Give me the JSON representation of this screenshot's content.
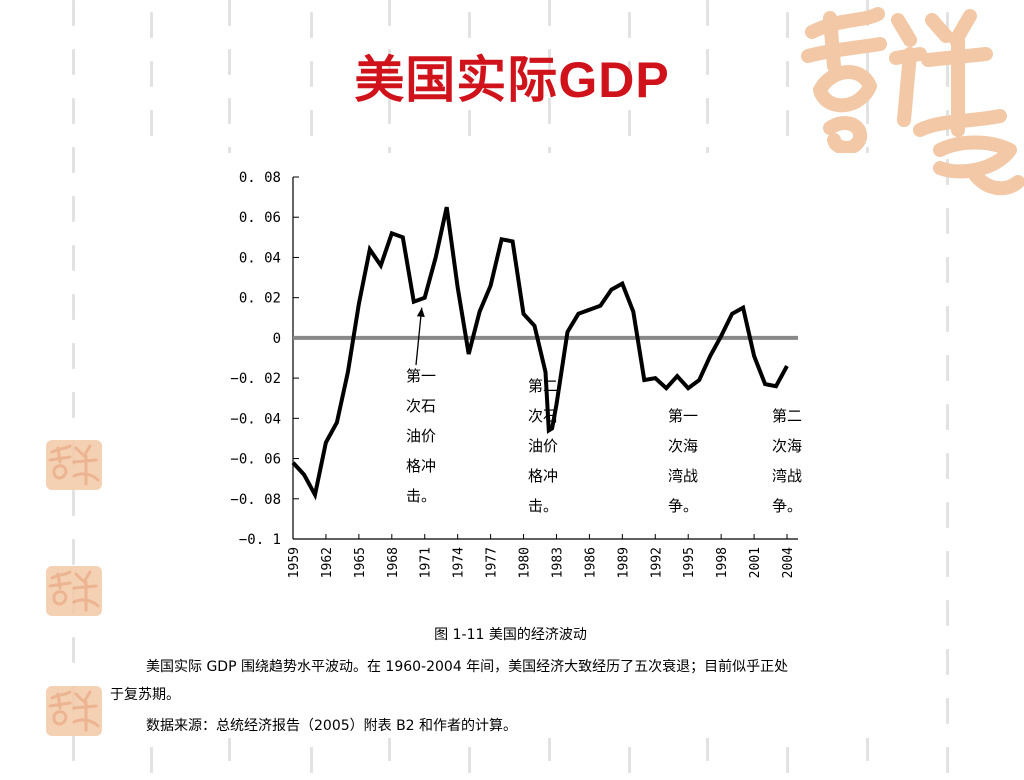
{
  "slide": {
    "title_cn": "美国实际",
    "title_latin": "GDP",
    "title_color": "#d0121b"
  },
  "figure": {
    "caption": "图 1-11  美国的经济波动",
    "note_line1": "美国实际 GDP 围绕趋势水平波动。在 1960-2004 年间，美国经济大致经历了五次衰退；目前似乎正处",
    "note_line2": "于复苏期。",
    "source_line": "数据来源：总统经济报告（2005）附表 B2 和作者的计算。"
  },
  "chart_data": {
    "type": "line",
    "title": "",
    "xlabel": "",
    "ylabel": "",
    "ylim": [
      -0.1,
      0.08
    ],
    "xlim": [
      1959,
      2005
    ],
    "yticks": [
      0.08,
      0.06,
      0.04,
      0.02,
      0,
      -0.02,
      -0.04,
      -0.06,
      -0.08,
      -0.1
    ],
    "ytick_labels": [
      "0. 08",
      "0. 06",
      "0. 04",
      "0. 02",
      "0",
      "−0. 02",
      "−0. 04",
      "−0. 06",
      "−0. 08",
      "−0. 1"
    ],
    "xticks": [
      1959,
      1962,
      1965,
      1968,
      1971,
      1974,
      1977,
      1980,
      1983,
      1986,
      1989,
      1992,
      1995,
      1998,
      2001,
      2004
    ],
    "x_tick_labels": [
      "1959",
      "1962",
      "1965",
      "1968",
      "1971",
      "1974",
      "1977",
      "1980",
      "1983",
      "1986",
      "1989",
      "1992",
      "1995",
      "1998",
      "2001",
      "2004"
    ],
    "zero_line": true,
    "zero_line_color": "#888888",
    "series": [
      {
        "line_color": "#000000",
        "x": [
          1959,
          1960,
          1961,
          1962,
          1963,
          1964,
          1965,
          1966,
          1967,
          1968,
          1969,
          1970,
          1971,
          1972,
          1973,
          1974,
          1975,
          1976,
          1977,
          1978,
          1979,
          1980,
          1981,
          1982,
          1982.3,
          1982.6,
          1983,
          1984,
          1985,
          1986,
          1987,
          1988,
          1989,
          1990,
          1991,
          1992,
          1993,
          1994,
          1995,
          1996,
          1997,
          1998,
          1999,
          2000,
          2001,
          2002,
          2003,
          2004
        ],
        "y": [
          -0.062,
          -0.068,
          -0.078,
          -0.052,
          -0.042,
          -0.017,
          0.017,
          0.044,
          0.036,
          0.052,
          0.05,
          0.018,
          0.02,
          0.04,
          0.065,
          0.025,
          -0.008,
          0.013,
          0.026,
          0.049,
          0.048,
          0.012,
          0.006,
          -0.017,
          -0.046,
          -0.045,
          -0.033,
          0.003,
          0.012,
          0.014,
          0.016,
          0.024,
          0.027,
          0.013,
          -0.021,
          -0.02,
          -0.025,
          -0.019,
          -0.025,
          -0.021,
          -0.009,
          0.001,
          0.012,
          0.015,
          -0.009,
          -0.023,
          -0.024,
          -0.014
        ]
      }
    ],
    "annotations": [
      {
        "lines": [
          "第一",
          "次石",
          "油价",
          "格冲",
          "击。"
        ],
        "x": 1971,
        "y": 0.018,
        "has_arrow": true
      },
      {
        "lines": [
          "第二",
          "次石",
          "油价",
          "格冲",
          "击。"
        ],
        "x": 1982,
        "y": -0.017,
        "has_arrow": false
      },
      {
        "lines": [
          "第一",
          "次海",
          "湾战",
          "争。"
        ],
        "x": 1992,
        "y": -0.037,
        "has_arrow": false
      },
      {
        "lines": [
          "第二",
          "次海",
          "湾战",
          "争。"
        ],
        "x": 2002,
        "y": -0.037,
        "has_arrow": false
      }
    ]
  },
  "decor": {
    "seal_color": "#f4c9a8",
    "logo_color": "#f2c8a6"
  }
}
